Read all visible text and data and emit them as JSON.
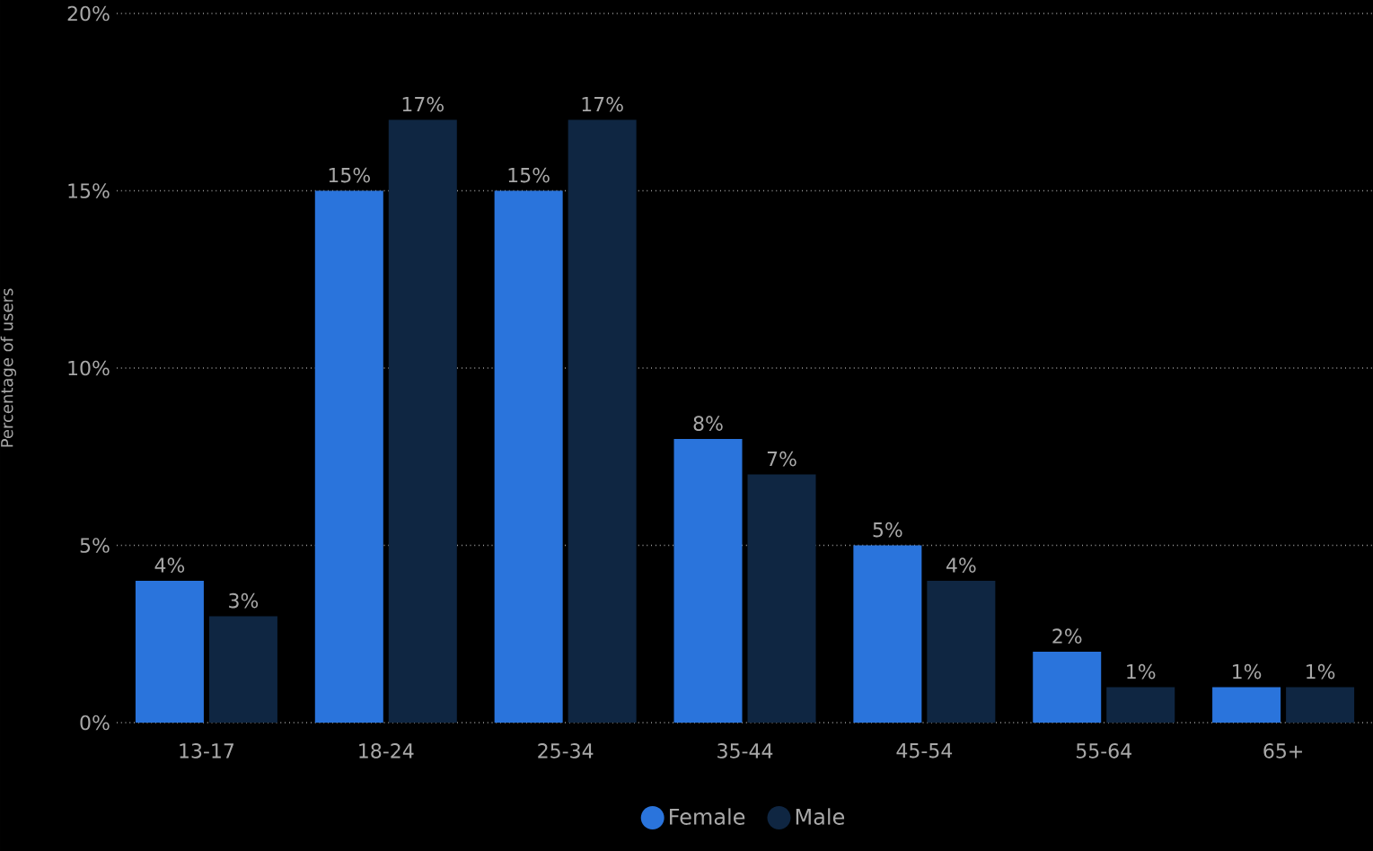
{
  "chart_data": {
    "type": "bar",
    "ylabel": "Percentage of users",
    "categories": [
      "13-17",
      "18-24",
      "25-34",
      "35-44",
      "45-54",
      "55-64",
      "65+"
    ],
    "series": [
      {
        "name": "Female",
        "color": "#2a74dc",
        "values": [
          4,
          15,
          15,
          8,
          5,
          2,
          1
        ],
        "value_labels": [
          "4%",
          "15%",
          "15%",
          "8%",
          "5%",
          "2%",
          "1%"
        ]
      },
      {
        "name": "Male",
        "color": "#0f2642",
        "values": [
          3,
          17,
          17,
          7,
          4,
          1,
          1
        ],
        "value_labels": [
          "3%",
          "17%",
          "17%",
          "7%",
          "4%",
          "1%",
          "1%"
        ]
      }
    ],
    "ylim": [
      0,
      20
    ],
    "yticks": [
      {
        "value": 0,
        "label": "0%"
      },
      {
        "value": 5,
        "label": "5%"
      },
      {
        "value": 10,
        "label": "10%"
      },
      {
        "value": 15,
        "label": "15%"
      },
      {
        "value": 20,
        "label": "20%"
      }
    ],
    "grid": "y",
    "legend": "bottom"
  }
}
